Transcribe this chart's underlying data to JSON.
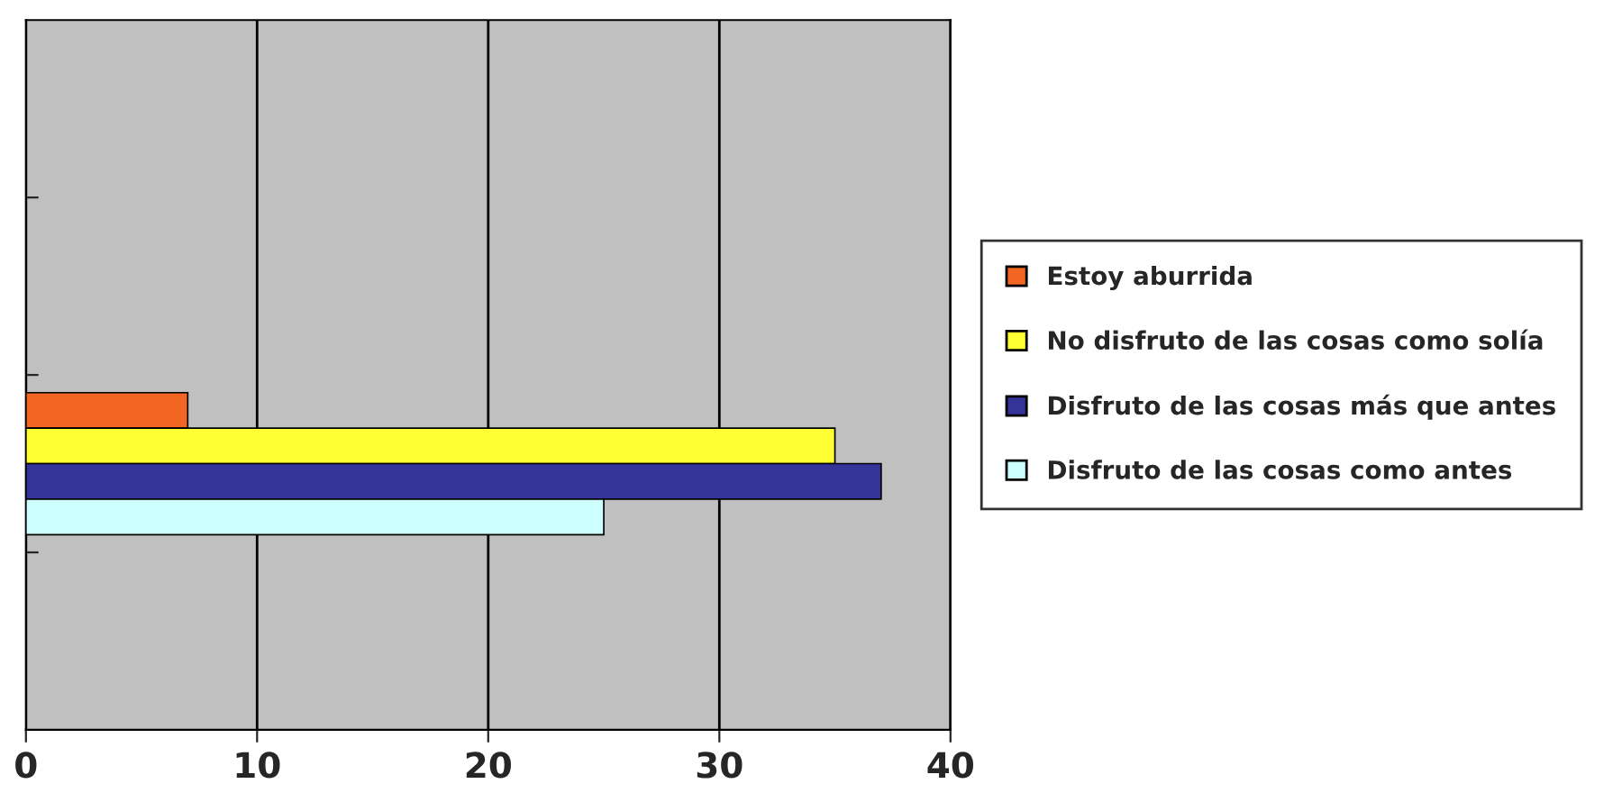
{
  "chart_data": {
    "type": "bar",
    "orientation": "horizontal",
    "categories": [
      null,
      null,
      null,
      null
    ],
    "series": [
      {
        "name": "Estoy aburrida",
        "color": "#f26522",
        "values": [
          null,
          null,
          7,
          null
        ]
      },
      {
        "name": "No disfruto de las cosas como solía",
        "color": "#ffff33",
        "values": [
          null,
          null,
          35,
          null
        ]
      },
      {
        "name": "Disfruto de las cosas más que antes",
        "color": "#333399",
        "values": [
          null,
          null,
          37,
          null
        ]
      },
      {
        "name": "Disfruto de las cosas como antes",
        "color": "#ccffff",
        "values": [
          null,
          null,
          25,
          null
        ]
      }
    ],
    "xlim": [
      0,
      40
    ],
    "xticks": [
      0,
      10,
      20,
      30,
      40
    ],
    "grid": "x",
    "legend": "right",
    "tick_labels": "x"
  }
}
